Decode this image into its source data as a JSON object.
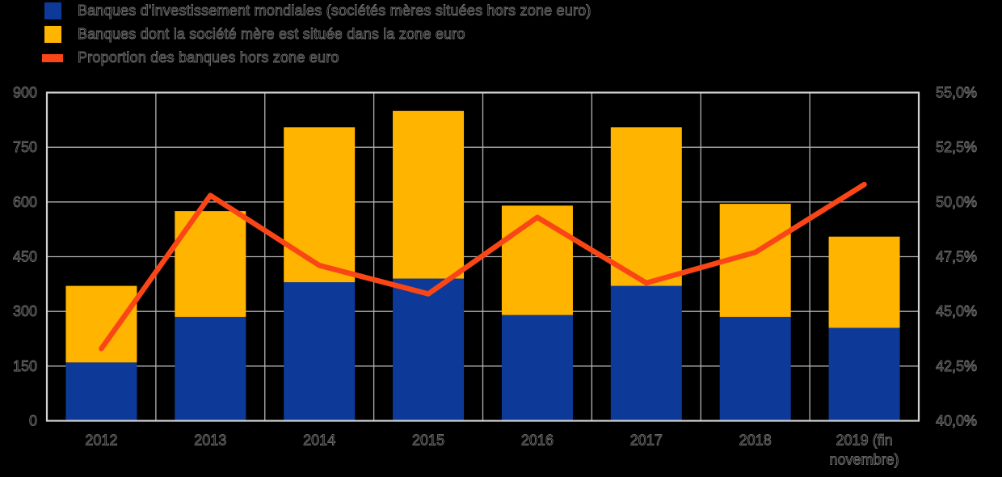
{
  "legend": {
    "items": [
      {
        "label": "Banques d'investissement mondiales (sociétés mères situées hors zone euro)",
        "color": "#0d3a99",
        "shape": "square"
      },
      {
        "label": "Banques dont la société mère est située dans la zone euro",
        "color": "#ffb400",
        "shape": "square"
      },
      {
        "label": "Proportion des banques hors zone euro",
        "color": "#fa4616",
        "shape": "line"
      }
    ]
  },
  "chart_data": {
    "type": "bar",
    "subtype": "stacked-bars-with-line",
    "title": "",
    "categories": [
      "2012",
      "2013",
      "2014",
      "2015",
      "2016",
      "2017",
      "2018",
      "2019 (fin novembre)"
    ],
    "x_tick_labels": [
      "2012",
      "2013",
      "2014",
      "2015",
      "2016",
      "2017",
      "2018",
      "2019 (fin\nnovembre)"
    ],
    "series": [
      {
        "name": "Banques d'investissement mondiales (sociétés mères situées hors zone euro)",
        "type": "bar",
        "stacked": true,
        "axis": "left",
        "color": "#0d3a99",
        "values": [
          160,
          285,
          380,
          390,
          290,
          370,
          285,
          255
        ]
      },
      {
        "name": "Banques dont la société mère est située dans la zone euro",
        "type": "bar",
        "stacked": true,
        "axis": "left",
        "color": "#ffb400",
        "values": [
          210,
          290,
          425,
          460,
          300,
          435,
          310,
          250
        ]
      },
      {
        "name": "Proportion des banques hors zone euro",
        "type": "line",
        "axis": "right",
        "color": "#fa4616",
        "values": [
          43.3,
          50.3,
          47.1,
          45.8,
          49.3,
          46.3,
          47.7,
          50.8
        ]
      }
    ],
    "stacked_totals": [
      370,
      575,
      805,
      850,
      590,
      805,
      595,
      505
    ],
    "left_axis": {
      "range": [
        0,
        900
      ],
      "ticks": [
        0,
        150,
        300,
        450,
        600,
        750,
        900
      ],
      "tick_labels": [
        "0",
        "150",
        "300",
        "450",
        "600",
        "750",
        "900"
      ]
    },
    "right_axis": {
      "range": [
        40,
        55
      ],
      "ticks": [
        40,
        42.5,
        45,
        47.5,
        50,
        52.5,
        55
      ],
      "tick_labels": [
        "40,0%",
        "42,5%",
        "45,0%",
        "47,5%",
        "50,0%",
        "52,5%",
        "55,0%"
      ]
    },
    "grid": true,
    "legend_position": "top-left",
    "colors": {
      "bar_blue": "#0d3a99",
      "bar_yellow": "#ffb400",
      "line_orange": "#fa4616",
      "grid": "#b3b3b3",
      "border": "#d4d4d4",
      "background": "#000000",
      "text_fill": "#000000",
      "text_outline": "#6f6f6f"
    }
  }
}
